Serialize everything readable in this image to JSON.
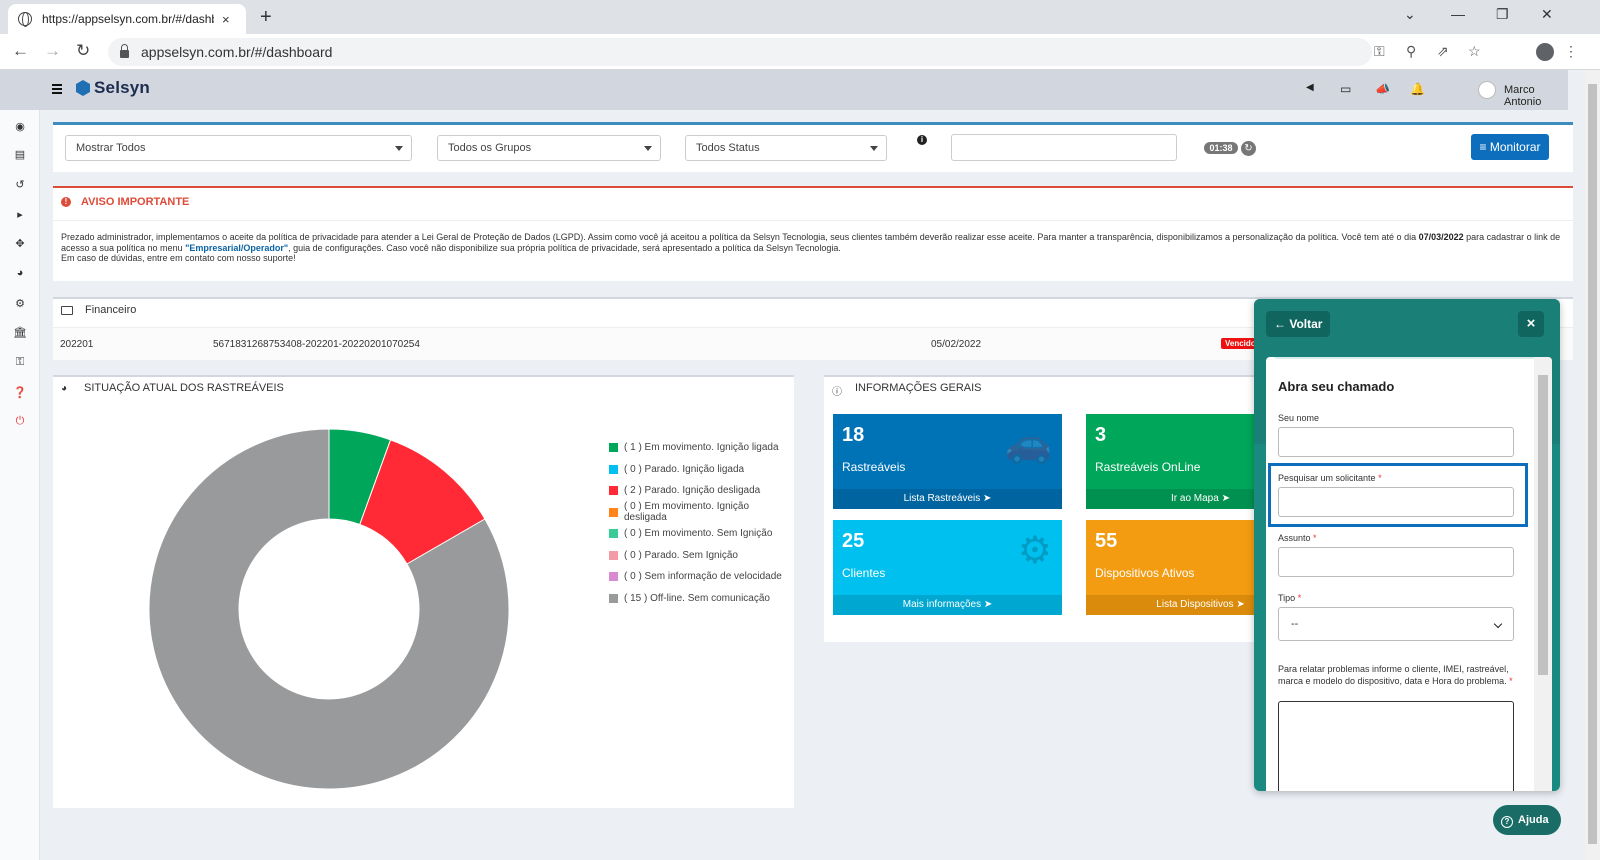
{
  "browser": {
    "tab_title": "https://appselsyn.com.br/#/dashb",
    "tab_close": "×",
    "new_tab": "+",
    "url": "appselsyn.com.br/#/dashboard"
  },
  "header": {
    "logo_text": "Selsyn",
    "user_name": "Marco Antonio"
  },
  "filters": {
    "show": "Mostrar Todos",
    "groups": "Todos os Grupos",
    "status": "Todos Status",
    "timer": "01:38",
    "monitor_label": "Monitorar"
  },
  "notice": {
    "title": "AVISO IMPORTANTE",
    "line1_a": "Prezado administrador, implementamos o aceite da política de privacidade para atender a Lei Geral de Proteção de Dados (LGPD). Assim como você já aceitou a política da Selsyn Tecnologia, seus clientes também deverão realizar esse aceite. Para manter a transparência, disponibilizamos a personalização da política. Você tem até o dia ",
    "line1_date": "07/03/2022",
    "line1_b": " para cadastrar o link de",
    "line2_a": "acesso a sua política no menu ",
    "line2_menu": "\"Empresarial/Operador\"",
    "line2_b": ", guia de configurações. Caso você não disponibilize sua própria política de privacidade, será apresentado a política da Selsyn Tecnologia.",
    "line3": "Em caso de dúvidas, entre em contato com nosso suporte!"
  },
  "financeiro": {
    "title": "Financeiro",
    "row": {
      "ref": "202201",
      "code": "5671831268753408-202201-20220201070254",
      "date": "05/02/2022",
      "status": "Vencido"
    }
  },
  "situacao": {
    "title": "SITUAÇÃO ATUAL DOS RASTREÁVEIS"
  },
  "chart_data": {
    "type": "pie",
    "donut": true,
    "labels": [
      "( 1 ) Em movimento. Ignição ligada",
      "( 0 ) Parado. Ignição ligada",
      "( 2 ) Parado. Ignição desligada",
      "( 0 ) Em movimento. Ignição desligada",
      "( 0 ) Em movimento. Sem Ignição",
      "( 0 ) Parado. Sem Ignição",
      "( 0 ) Sem informação de velocidade",
      "( 15 ) Off-line. Sem comunicação"
    ],
    "values": [
      1,
      0,
      2,
      0,
      0,
      0,
      0,
      15
    ],
    "colors": [
      "#00a65a",
      "#00c0ef",
      "#ff2a36",
      "#ff851b",
      "#39cc96",
      "#f39ca8",
      "#d88bd1",
      "#999a9c"
    ],
    "legend_position": "right"
  },
  "info": {
    "title": "INFORMAÇÕES GERAIS",
    "tiles": [
      {
        "num": "18",
        "label": "Rastreáveis",
        "link": "Lista Rastreáveis"
      },
      {
        "num": "3",
        "label": "Rastreáveis OnLine",
        "link": "Ir ao Mapa"
      },
      {
        "num": "25",
        "label": "Clientes",
        "link": "Mais informações"
      },
      {
        "num": "55",
        "label": "Dispositivos Ativos",
        "link": "Lista Dispositivos"
      }
    ]
  },
  "widget": {
    "back_label": "Voltar",
    "close_label": "×",
    "form_title": "Abra seu chamado",
    "name_label": "Seu nome",
    "requester_label": "Pesquisar um solicitante",
    "subject_label": "Assunto",
    "type_label": "Tipo",
    "type_value": "--",
    "desc_label": "Para relatar problemas informe o cliente, IMEI, rastreável, marca e modelo do dispositivo, data e Hora do problema.",
    "required_mark": "*"
  },
  "help_button": "Ajuda"
}
